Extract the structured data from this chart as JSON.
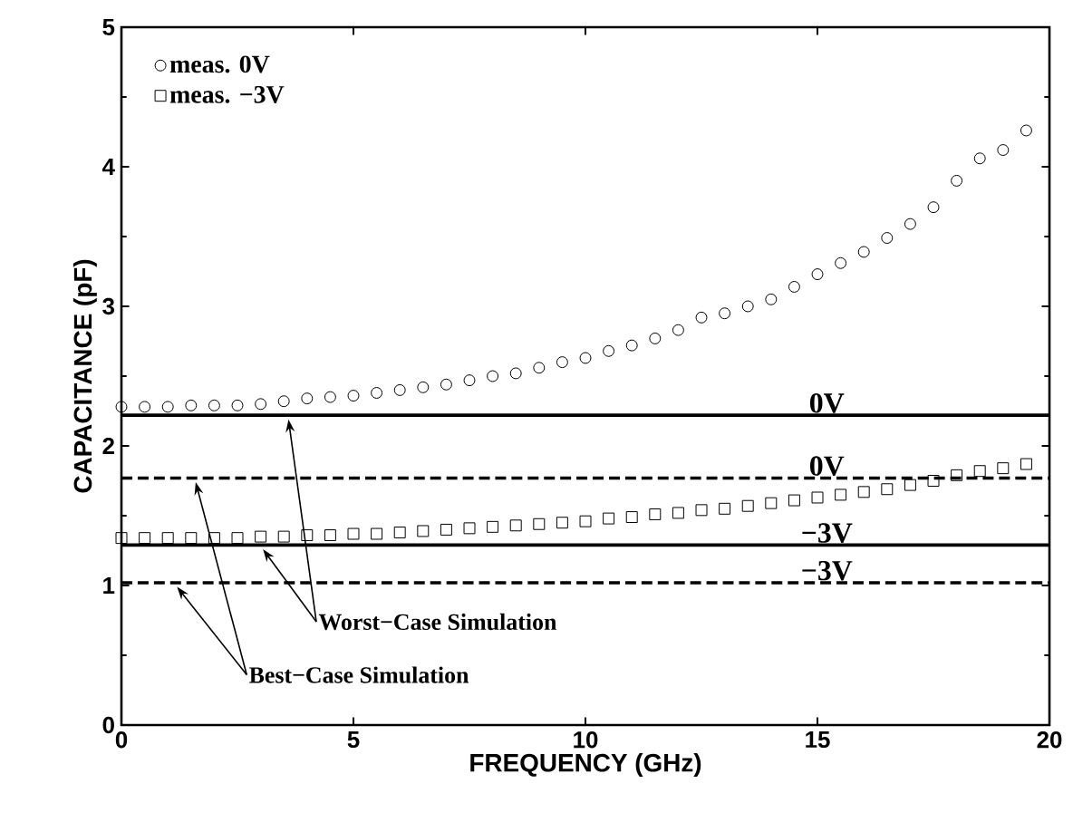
{
  "chart_data": {
    "type": "scatter",
    "xlabel": "FREQUENCY (GHz)",
    "ylabel": "CAPACITANCE (pF)",
    "xlim": [
      0,
      20
    ],
    "ylim": [
      0,
      5
    ],
    "xticks": [
      0,
      5,
      10,
      15,
      20
    ],
    "yticks": [
      0,
      1,
      2,
      3,
      4,
      5
    ],
    "grid": false,
    "legend": "top left",
    "x": [
      0,
      0.5,
      1,
      1.5,
      2,
      2.5,
      3,
      3.5,
      4,
      4.5,
      5,
      5.5,
      6,
      6.5,
      7,
      7.5,
      8,
      8.5,
      9,
      9.5,
      10,
      10.5,
      11,
      11.5,
      12,
      12.5,
      13,
      13.5,
      14,
      14.5,
      15,
      15.5,
      16,
      16.5,
      17,
      17.5,
      18,
      18.5,
      19,
      19.5
    ],
    "series": [
      {
        "name": "meas. 0V",
        "color": "#000000",
        "marker": "circle",
        "values": [
          2.28,
          2.28,
          2.28,
          2.29,
          2.29,
          2.29,
          2.3,
          2.32,
          2.34,
          2.35,
          2.36,
          2.38,
          2.4,
          2.42,
          2.44,
          2.47,
          2.5,
          2.52,
          2.56,
          2.6,
          2.63,
          2.68,
          2.72,
          2.77,
          2.83,
          2.92,
          2.95,
          3.0,
          3.05,
          3.14,
          3.23,
          3.31,
          3.39,
          3.49,
          3.59,
          3.71,
          3.9,
          4.06,
          4.12,
          4.26
        ]
      },
      {
        "name": "meas. −3V",
        "color": "#000000",
        "marker": "square",
        "values": [
          1.34,
          1.34,
          1.34,
          1.34,
          1.34,
          1.34,
          1.35,
          1.35,
          1.36,
          1.36,
          1.37,
          1.37,
          1.38,
          1.39,
          1.4,
          1.41,
          1.42,
          1.43,
          1.44,
          1.45,
          1.46,
          1.48,
          1.49,
          1.51,
          1.52,
          1.54,
          1.55,
          1.57,
          1.59,
          1.61,
          1.63,
          1.65,
          1.67,
          1.69,
          1.72,
          1.75,
          1.79,
          1.82,
          1.84,
          1.87
        ]
      }
    ],
    "ref_lines": [
      {
        "axis": "y",
        "value": 2.22,
        "label": "0V",
        "color": "#000000",
        "line_style": "solid"
      },
      {
        "axis": "y",
        "value": 1.77,
        "label": "0V",
        "color": "#000000",
        "line_style": "dashed"
      },
      {
        "axis": "y",
        "value": 1.29,
        "label": "−3V",
        "color": "#000000",
        "line_style": "solid"
      },
      {
        "axis": "y",
        "value": 1.02,
        "label": "−3V",
        "color": "#000000",
        "line_style": "dashed"
      }
    ],
    "annotations": [
      {
        "text": "Worst−Case Simulation",
        "x": 3.6,
        "y": 2.22
      },
      {
        "text": "Best−Case Simulation",
        "x": 1.6,
        "y": 1.77
      }
    ]
  }
}
